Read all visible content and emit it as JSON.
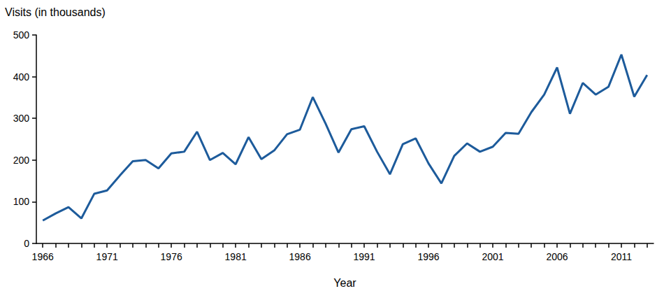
{
  "chart_data": {
    "type": "line",
    "y_label": "Visits (in thousands)",
    "x_label": "Year",
    "categories": [
      "1966",
      null,
      null,
      null,
      null,
      "1971",
      null,
      null,
      null,
      null,
      "1976",
      null,
      null,
      null,
      null,
      "1981",
      null,
      null,
      null,
      null,
      "1986",
      null,
      null,
      null,
      null,
      "1991",
      null,
      null,
      null,
      null,
      "1996",
      null,
      null,
      null,
      null,
      "2001",
      null,
      null,
      null,
      null,
      "2006",
      null,
      null,
      null,
      null,
      "2011",
      null,
      null
    ],
    "values": [
      55,
      72,
      87,
      60,
      119,
      127,
      163,
      197,
      200,
      180,
      216,
      220,
      268,
      200,
      217,
      190,
      255,
      202,
      223,
      262,
      273,
      351,
      287,
      218,
      274,
      281,
      220,
      166,
      238,
      252,
      192,
      144,
      210,
      240,
      220,
      232,
      265,
      263,
      315,
      357,
      422,
      311,
      385,
      357,
      376,
      453,
      352,
      404
    ],
    "color": "#1d5b9b",
    "ylim": [
      0,
      500
    ],
    "yticks": [
      0,
      100,
      200,
      300,
      400,
      500
    ],
    "grid": false
  }
}
